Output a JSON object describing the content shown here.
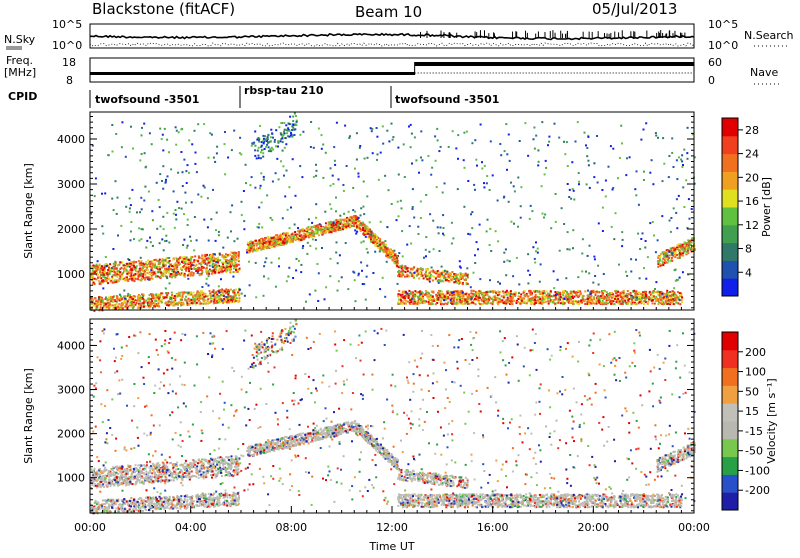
{
  "header": {
    "station": "Blackstone (fitACF)",
    "beam": "Beam 10",
    "date": "05/Jul/2013"
  },
  "top_panels": {
    "nsky_label": "N.Sky",
    "nsky_tick_high": "10^5",
    "nsky_tick_low": "10^0",
    "nsearch_label": "N.Search",
    "nsearch_tick_high": "10^5",
    "nsearch_tick_low": "10^0",
    "freq_label_1": "Freq.",
    "freq_label_2": "[MHz]",
    "freq_tick_high": "18",
    "freq_tick_low": "8",
    "nave_label": "Nave",
    "nave_tick_high": "60",
    "nave_tick_low": "0",
    "cpid_label": "CPID"
  },
  "cpid_segments": [
    {
      "name": "twofsound -3501",
      "start_hour": 0,
      "end_hour": 6
    },
    {
      "name": "rbsp-tau 210",
      "start_hour": 6,
      "end_hour": 12
    },
    {
      "name": "twofsound -3501",
      "start_hour": 12,
      "end_hour": 24
    }
  ],
  "chart_data": [
    {
      "type": "heatmap",
      "quantity": "power",
      "xlabel": "",
      "ylabel": "Slant Range [km]",
      "xlim": [
        0,
        24
      ],
      "ylim": [
        200,
        4600
      ],
      "y_ticks": [
        "1000",
        "2000",
        "3000",
        "4000"
      ],
      "y_tick_values": [
        1000,
        2000,
        3000,
        4000
      ],
      "colorbar": {
        "label": "Power [dB]",
        "tick_labels": [
          "4",
          "8",
          "12",
          "16",
          "20",
          "24",
          "28"
        ],
        "tick_values": [
          4,
          8,
          12,
          16,
          20,
          24,
          28
        ],
        "range": [
          0,
          30
        ],
        "colors": [
          "#1020e8",
          "#2050b0",
          "#307868",
          "#40a050",
          "#60c040",
          "#e0e020",
          "#f0a020",
          "#f07020",
          "#f04020",
          "#e00000"
        ]
      }
    },
    {
      "type": "heatmap",
      "quantity": "velocity",
      "xlabel": "Time UT",
      "ylabel": "Slant Range [km]",
      "xlim": [
        0,
        24
      ],
      "ylim": [
        200,
        4600
      ],
      "x_ticks": [
        "00:00",
        "04:00",
        "08:00",
        "12:00",
        "16:00",
        "20:00",
        "00:00"
      ],
      "x_tick_values": [
        0,
        4,
        8,
        12,
        16,
        20,
        24
      ],
      "y_ticks": [
        "1000",
        "2000",
        "3000",
        "4000"
      ],
      "y_tick_values": [
        1000,
        2000,
        3000,
        4000
      ],
      "colorbar": {
        "label": "Velocity [m s⁻¹]",
        "tick_labels": [
          "200",
          "100",
          "50",
          "15",
          "-15",
          "-50",
          "-100",
          "-200"
        ],
        "colors": [
          "#1e1ea8",
          "#2850c8",
          "#28a048",
          "#78c850",
          "#b8b8b0",
          "#c0c0b8",
          "#f0a040",
          "#f07020",
          "#f03020",
          "#e00000"
        ]
      }
    }
  ]
}
